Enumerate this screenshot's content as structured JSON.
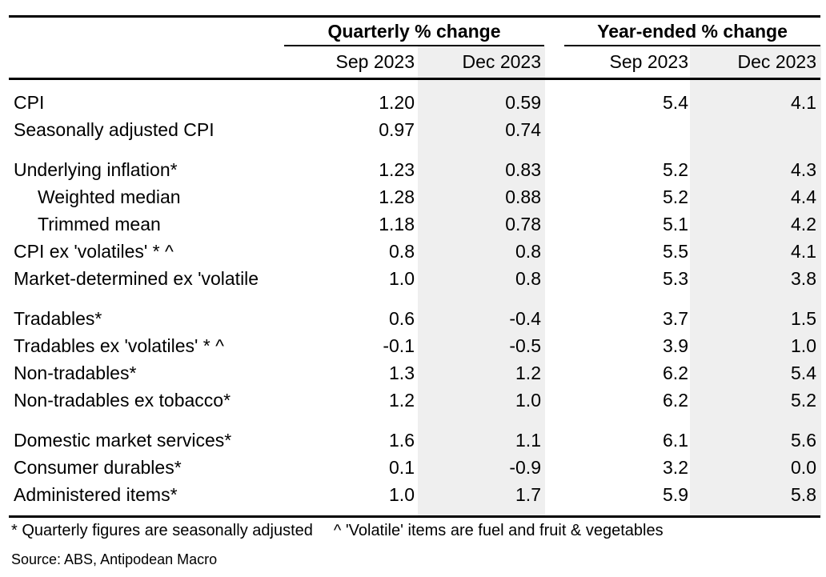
{
  "table": {
    "col_groups": [
      {
        "label": "Quarterly % change"
      },
      {
        "label": "Year-ended % change"
      }
    ],
    "sub_headers": [
      "Sep 2023",
      "Dec 2023",
      "Sep 2023",
      "Dec 2023"
    ],
    "sections": [
      {
        "rows": [
          {
            "label": "CPI",
            "indent": false,
            "values": [
              "1.20",
              "0.59",
              "5.4",
              "4.1"
            ]
          },
          {
            "label": "Seasonally adjusted CPI",
            "indent": false,
            "values": [
              "0.97",
              "0.74",
              "",
              ""
            ]
          }
        ]
      },
      {
        "rows": [
          {
            "label": "Underlying inflation*",
            "indent": false,
            "values": [
              "1.23",
              "0.83",
              "5.2",
              "4.3"
            ]
          },
          {
            "label": "Weighted median",
            "indent": true,
            "values": [
              "1.28",
              "0.88",
              "5.2",
              "4.4"
            ]
          },
          {
            "label": "Trimmed mean",
            "indent": true,
            "values": [
              "1.18",
              "0.78",
              "5.1",
              "4.2"
            ]
          },
          {
            "label": "CPI ex 'volatiles' * ^",
            "indent": false,
            "values": [
              "0.8",
              "0.8",
              "5.5",
              "4.1"
            ]
          },
          {
            "label": "Market-determined ex 'volatile",
            "indent": false,
            "values": [
              "1.0",
              "0.8",
              "5.3",
              "3.8"
            ]
          }
        ]
      },
      {
        "rows": [
          {
            "label": "Tradables*",
            "indent": false,
            "values": [
              "0.6",
              "-0.4",
              "3.7",
              "1.5"
            ]
          },
          {
            "label": "Tradables ex 'volatiles' * ^",
            "indent": false,
            "values": [
              "-0.1",
              "-0.5",
              "3.9",
              "1.0"
            ]
          },
          {
            "label": "Non-tradables*",
            "indent": false,
            "values": [
              "1.3",
              "1.2",
              "6.2",
              "5.4"
            ]
          },
          {
            "label": "Non-tradables ex tobacco*",
            "indent": false,
            "values": [
              "1.2",
              "1.0",
              "6.2",
              "5.2"
            ]
          }
        ]
      },
      {
        "rows": [
          {
            "label": "Domestic market services*",
            "indent": false,
            "values": [
              "1.6",
              "1.1",
              "6.1",
              "5.6"
            ]
          },
          {
            "label": "Consumer durables*",
            "indent": false,
            "values": [
              "0.1",
              "-0.9",
              "3.2",
              "0.0"
            ]
          },
          {
            "label": "Administered items*",
            "indent": false,
            "values": [
              "1.0",
              "1.7",
              "5.9",
              "5.8"
            ]
          }
        ]
      }
    ]
  },
  "footnotes": {
    "asterisk": "* Quarterly figures are seasonally adjusted",
    "caret": "^ 'Volatile' items are fuel and fruit & vegetables"
  },
  "source": "Source: ABS, Antipodean Macro",
  "colors": {
    "shaded_column": "#efefef",
    "text": "#000000",
    "rule": "#000000",
    "background": "#ffffff"
  },
  "chart_data": {
    "type": "table",
    "column_groups": [
      "Quarterly % change",
      "Year-ended % change"
    ],
    "columns": [
      "Quarterly % change Sep 2023",
      "Quarterly % change Dec 2023",
      "Year-ended % change Sep 2023",
      "Year-ended % change Dec 2023"
    ],
    "rows": [
      {
        "label": "CPI",
        "values": [
          1.2,
          0.59,
          5.4,
          4.1
        ]
      },
      {
        "label": "Seasonally adjusted CPI",
        "values": [
          0.97,
          0.74,
          null,
          null
        ]
      },
      {
        "label": "Underlying inflation*",
        "values": [
          1.23,
          0.83,
          5.2,
          4.3
        ]
      },
      {
        "label": "Weighted median",
        "values": [
          1.28,
          0.88,
          5.2,
          4.4
        ]
      },
      {
        "label": "Trimmed mean",
        "values": [
          1.18,
          0.78,
          5.1,
          4.2
        ]
      },
      {
        "label": "CPI ex 'volatiles' * ^",
        "values": [
          0.8,
          0.8,
          5.5,
          4.1
        ]
      },
      {
        "label": "Market-determined ex 'volatile",
        "values": [
          1.0,
          0.8,
          5.3,
          3.8
        ]
      },
      {
        "label": "Tradables*",
        "values": [
          0.6,
          -0.4,
          3.7,
          1.5
        ]
      },
      {
        "label": "Tradables ex 'volatiles' * ^",
        "values": [
          -0.1,
          -0.5,
          3.9,
          1.0
        ]
      },
      {
        "label": "Non-tradables*",
        "values": [
          1.3,
          1.2,
          6.2,
          5.4
        ]
      },
      {
        "label": "Non-tradables ex tobacco*",
        "values": [
          1.2,
          1.0,
          6.2,
          5.2
        ]
      },
      {
        "label": "Domestic market services*",
        "values": [
          1.6,
          1.1,
          6.1,
          5.6
        ]
      },
      {
        "label": "Consumer durables*",
        "values": [
          0.1,
          -0.9,
          3.2,
          0.0
        ]
      },
      {
        "label": "Administered items*",
        "values": [
          1.0,
          1.7,
          5.9,
          5.8
        ]
      }
    ],
    "notes": [
      "* Quarterly figures are seasonally adjusted",
      "^ 'Volatile' items are fuel and fruit & vegetables"
    ],
    "source": "Source: ABS, Antipodean Macro"
  }
}
